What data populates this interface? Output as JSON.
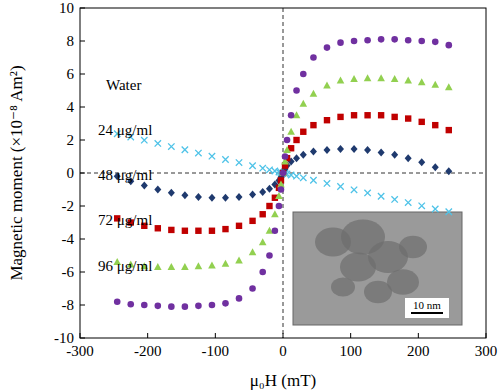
{
  "chart_data": {
    "type": "scatter",
    "xlabel": "μ₀H (mT)",
    "ylabel": "Magnetic moment (×10⁻⁸ Am²)",
    "annotations": [
      "10 nm"
    ],
    "xlim": [
      -300,
      300
    ],
    "xticks": [
      -300,
      -200,
      -100,
      0,
      100,
      200,
      300
    ],
    "ylim": [
      -10,
      10
    ],
    "yticks": [
      -10,
      -8,
      -6,
      -4,
      -2,
      0,
      2,
      4,
      6,
      8,
      10
    ],
    "grid": false,
    "x": [
      -245,
      -225,
      -205,
      -185,
      -165,
      -145,
      -125,
      -105,
      -85,
      -65,
      -45,
      -30,
      -20,
      -12,
      -6,
      -3,
      0,
      3,
      6,
      12,
      20,
      30,
      45,
      65,
      85,
      105,
      125,
      145,
      165,
      185,
      205,
      225,
      245
    ],
    "series": [
      {
        "name": "Water",
        "color": "#4fc3e8",
        "marker": "x",
        "values": [
          2.38,
          2.18,
          1.99,
          1.79,
          1.6,
          1.41,
          1.21,
          1.02,
          0.82,
          0.63,
          0.44,
          0.29,
          0.19,
          0.12,
          0.06,
          0.03,
          0,
          -0.03,
          -0.06,
          -0.12,
          -0.19,
          -0.29,
          -0.44,
          -0.63,
          -0.82,
          -1.02,
          -1.21,
          -1.41,
          -1.6,
          -1.79,
          -1.99,
          -2.18,
          -2.35
        ]
      },
      {
        "name": "24 μg/ml",
        "color": "#1f3a6e",
        "marker": "diamond",
        "values": [
          -0.2,
          -0.5,
          -0.75,
          -1.0,
          -1.2,
          -1.35,
          -1.45,
          -1.5,
          -1.5,
          -1.45,
          -1.3,
          -1.15,
          -0.95,
          -0.7,
          -0.45,
          -0.25,
          0,
          0.25,
          0.45,
          0.7,
          0.9,
          1.1,
          1.3,
          1.4,
          1.45,
          1.45,
          1.4,
          1.25,
          1.1,
          0.9,
          0.65,
          0.35,
          0.1
        ]
      },
      {
        "name": "48 μg/ml",
        "color": "#c00000",
        "marker": "square",
        "values": [
          -2.75,
          -3.0,
          -3.2,
          -3.35,
          -3.45,
          -3.5,
          -3.5,
          -3.5,
          -3.4,
          -3.2,
          -2.9,
          -2.5,
          -2.0,
          -1.5,
          -0.9,
          -0.45,
          0,
          0.45,
          0.9,
          1.5,
          2.0,
          2.5,
          2.9,
          3.2,
          3.4,
          3.5,
          3.5,
          3.5,
          3.4,
          3.3,
          3.1,
          2.9,
          2.6
        ]
      },
      {
        "name": "72 μg/ml",
        "color": "#92d050",
        "marker": "triangle",
        "values": [
          -5.4,
          -5.55,
          -5.65,
          -5.7,
          -5.7,
          -5.7,
          -5.65,
          -5.6,
          -5.5,
          -5.3,
          -4.8,
          -4.2,
          -3.5,
          -2.5,
          -1.4,
          -0.7,
          0,
          0.7,
          1.4,
          2.5,
          3.5,
          4.2,
          4.8,
          5.3,
          5.6,
          5.7,
          5.75,
          5.75,
          5.7,
          5.6,
          5.5,
          5.35,
          5.2
        ]
      },
      {
        "name": "96 μg/ml",
        "color": "#7030a0",
        "marker": "circle",
        "values": [
          -7.8,
          -7.95,
          -8.0,
          -8.05,
          -8.1,
          -8.1,
          -8.05,
          -8.0,
          -7.9,
          -7.6,
          -7.0,
          -6.0,
          -5.0,
          -3.5,
          -2.0,
          -1.0,
          0,
          1.0,
          2.0,
          3.5,
          5.0,
          6.0,
          7.0,
          7.6,
          7.9,
          8.0,
          8.05,
          8.1,
          8.1,
          8.05,
          8.0,
          7.95,
          7.75
        ]
      }
    ]
  }
}
